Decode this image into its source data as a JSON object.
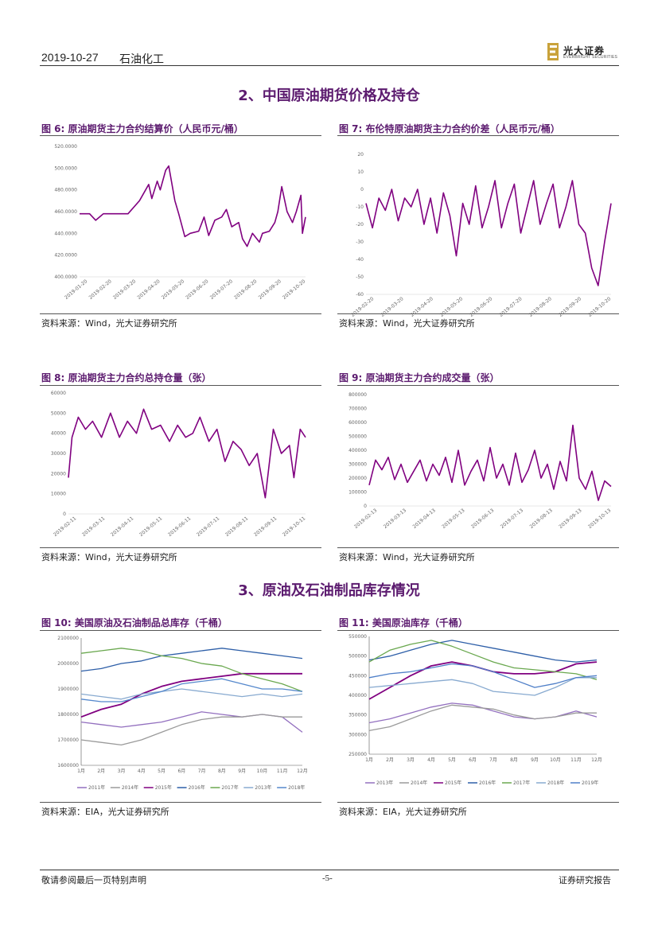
{
  "header": {
    "date": "2019-10-27",
    "sector": "石油化工",
    "logo_cn": "光大证券",
    "logo_en": "EVERBRIGHT SECURITIES"
  },
  "sections": [
    {
      "title": "2、中国原油期货价格及持仓"
    },
    {
      "title": "3、原油及石油制品库存情况"
    }
  ],
  "figures": [
    {
      "title": "图 6:   原油期货主力合约结算价（人民币元/桶）",
      "source": "资料来源：Wind，光大证券研究所"
    },
    {
      "title": "图 7:  布伦特原油期货主力合约价差（人民币元/桶）",
      "source": "资料来源：Wind，光大证券研究所"
    },
    {
      "title": "图 8:  原油期货主力合约总持仓量（张）",
      "source": "资料来源：Wind，光大证券研究所"
    },
    {
      "title": "图 9:  原油期货主力合约成交量（张）",
      "source": "资料来源：Wind，光大证券研究所"
    },
    {
      "title": "图 10:  美国原油及石油制品总库存（千桶）",
      "source": "资料来源：EIA，光大证券研究所"
    },
    {
      "title": "图 11:  美国原油库存（千桶）",
      "source": "资料来源：EIA，光大证券研究所"
    }
  ],
  "footer": {
    "disclaimer": "敬请参阅最后一页特别声明",
    "page": "-5-",
    "report_type": "证券研究报告"
  },
  "colors": {
    "brand_purple": "#5c1b6f",
    "series_purple": "#800080"
  },
  "chart_data": [
    {
      "id": "fig6",
      "type": "line",
      "ylim": [
        400,
        520
      ],
      "ytick_labels": [
        "400.0000",
        "420.0000",
        "440.0000",
        "460.0000",
        "480.0000",
        "500.0000",
        "520.0000"
      ],
      "xtick_labels": [
        "2019-01-20",
        "2019-02-20",
        "2019-03-20",
        "2019-04-20",
        "2019-05-20",
        "2019-06-20",
        "2019-07-20",
        "2019-08-20",
        "2019-09-20",
        "2019-10-20"
      ],
      "x": [
        "2019-01-01",
        "2019-01-14",
        "2019-01-22",
        "2019-02-01",
        "2019-02-20",
        "2019-03-05",
        "2019-03-20",
        "2019-04-01",
        "2019-04-05",
        "2019-04-12",
        "2019-04-16",
        "2019-04-23",
        "2019-04-27",
        "2019-05-05",
        "2019-05-10",
        "2019-05-18",
        "2019-05-25",
        "2019-06-05",
        "2019-06-12",
        "2019-06-18",
        "2019-06-26",
        "2019-07-05",
        "2019-07-11",
        "2019-07-18",
        "2019-07-27",
        "2019-08-01",
        "2019-08-07",
        "2019-08-14",
        "2019-08-23",
        "2019-08-27",
        "2019-09-05",
        "2019-09-12",
        "2019-09-16",
        "2019-09-21",
        "2019-09-28",
        "2019-10-05",
        "2019-10-10",
        "2019-10-16",
        "2019-10-18",
        "2019-10-22"
      ],
      "series": [
        {
          "values": [
            458,
            458,
            452,
            458,
            458,
            458,
            470,
            485,
            472,
            488,
            480,
            498,
            502,
            470,
            458,
            437,
            440,
            442,
            455,
            438,
            452,
            455,
            462,
            446,
            450,
            435,
            428,
            440,
            432,
            440,
            442,
            450,
            460,
            483,
            460,
            450,
            460,
            475,
            440,
            455
          ]
        }
      ],
      "color": "#800080"
    },
    {
      "id": "fig7",
      "type": "line",
      "ylim": [
        -60,
        20
      ],
      "ytick_labels": [
        "-60",
        "-50",
        "-40",
        "-30",
        "-20",
        "-10",
        "0",
        "10",
        "20"
      ],
      "xtick_labels": [
        "2019-02-20",
        "2019-03-20",
        "2019-04-20",
        "2019-05-20",
        "2019-06-20",
        "2019-07-20",
        "2019-08-20",
        "2019-09-20",
        "2019-10-20"
      ],
      "x": [
        "2019-02-01",
        "2019-02-08",
        "2019-02-15",
        "2019-02-22",
        "2019-03-01",
        "2019-03-08",
        "2019-03-15",
        "2019-03-22",
        "2019-03-29",
        "2019-04-05",
        "2019-04-12",
        "2019-04-19",
        "2019-04-26",
        "2019-05-03",
        "2019-05-10",
        "2019-05-17",
        "2019-05-24",
        "2019-05-31",
        "2019-06-07",
        "2019-06-14",
        "2019-06-21",
        "2019-06-28",
        "2019-07-05",
        "2019-07-12",
        "2019-07-19",
        "2019-07-26",
        "2019-08-02",
        "2019-08-09",
        "2019-08-16",
        "2019-08-23",
        "2019-08-30",
        "2019-09-06",
        "2019-09-13",
        "2019-09-20",
        "2019-09-27",
        "2019-10-04",
        "2019-10-11",
        "2019-10-18",
        "2019-10-25"
      ],
      "series": [
        {
          "values": [
            -8,
            -22,
            -5,
            -12,
            0,
            -18,
            -5,
            -10,
            0,
            -20,
            -5,
            -25,
            -2,
            -15,
            -38,
            -8,
            -20,
            2,
            -22,
            -10,
            5,
            -22,
            -8,
            3,
            -25,
            -10,
            5,
            -20,
            -8,
            3,
            -22,
            -10,
            5,
            -20,
            -25,
            -45,
            -55,
            -30,
            -8
          ]
        }
      ],
      "color": "#800080"
    },
    {
      "id": "fig8",
      "type": "line",
      "ylim": [
        0,
        60000
      ],
      "ytick_labels": [
        "0",
        "10000",
        "20000",
        "30000",
        "40000",
        "50000",
        "60000"
      ],
      "xtick_labels": [
        "2019-02-11",
        "2019-03-11",
        "2019-04-11",
        "2019-05-11",
        "2019-06-11",
        "2019-07-11",
        "2019-08-11",
        "2019-09-11",
        "2019-10-11"
      ],
      "x": [
        "2019-02-01",
        "2019-02-05",
        "2019-02-12",
        "2019-02-20",
        "2019-02-28",
        "2019-03-10",
        "2019-03-20",
        "2019-03-30",
        "2019-04-08",
        "2019-04-18",
        "2019-04-26",
        "2019-05-05",
        "2019-05-15",
        "2019-05-25",
        "2019-06-03",
        "2019-06-12",
        "2019-06-20",
        "2019-06-28",
        "2019-07-08",
        "2019-07-17",
        "2019-07-26",
        "2019-08-04",
        "2019-08-13",
        "2019-08-22",
        "2019-08-31",
        "2019-09-09",
        "2019-09-18",
        "2019-09-27",
        "2019-10-06",
        "2019-10-11",
        "2019-10-18",
        "2019-10-24"
      ],
      "series": [
        {
          "values": [
            18000,
            38000,
            48000,
            42000,
            46000,
            38000,
            50000,
            38000,
            46000,
            40000,
            52000,
            42000,
            44000,
            36000,
            44000,
            38000,
            40000,
            48000,
            36000,
            42000,
            26000,
            36000,
            32000,
            24000,
            30000,
            8000,
            42000,
            30000,
            34000,
            18000,
            42000,
            38000
          ]
        }
      ],
      "color": "#800080"
    },
    {
      "id": "fig9",
      "type": "line",
      "ylim": [
        0,
        800000
      ],
      "ytick_labels": [
        "0",
        "100000",
        "200000",
        "300000",
        "400000",
        "500000",
        "600000",
        "700000",
        "800000"
      ],
      "xtick_labels": [
        "2019-02-13",
        "2019-03-13",
        "2019-04-13",
        "2019-05-13",
        "2019-06-13",
        "2019-07-13",
        "2019-08-13",
        "2019-09-13",
        "2019-10-13"
      ],
      "x": [
        "2019-02-01",
        "2019-02-08",
        "2019-02-15",
        "2019-02-22",
        "2019-03-01",
        "2019-03-08",
        "2019-03-15",
        "2019-03-22",
        "2019-03-29",
        "2019-04-05",
        "2019-04-12",
        "2019-04-19",
        "2019-04-26",
        "2019-05-03",
        "2019-05-10",
        "2019-05-17",
        "2019-05-24",
        "2019-05-31",
        "2019-06-07",
        "2019-06-14",
        "2019-06-21",
        "2019-06-28",
        "2019-07-05",
        "2019-07-12",
        "2019-07-19",
        "2019-07-26",
        "2019-08-02",
        "2019-08-09",
        "2019-08-16",
        "2019-08-23",
        "2019-08-30",
        "2019-09-06",
        "2019-09-13",
        "2019-09-20",
        "2019-09-27",
        "2019-10-04",
        "2019-10-11",
        "2019-10-18",
        "2019-10-25"
      ],
      "series": [
        {
          "values": [
            150000,
            330000,
            260000,
            350000,
            190000,
            300000,
            170000,
            250000,
            330000,
            180000,
            300000,
            220000,
            350000,
            170000,
            400000,
            150000,
            250000,
            330000,
            180000,
            420000,
            200000,
            300000,
            150000,
            380000,
            170000,
            260000,
            400000,
            200000,
            300000,
            120000,
            320000,
            180000,
            580000,
            200000,
            120000,
            250000,
            40000,
            180000,
            140000
          ]
        }
      ],
      "color": "#800080"
    },
    {
      "id": "fig10",
      "type": "line",
      "ylim": [
        1600000,
        2100000
      ],
      "ytick_labels": [
        "1600000",
        "1700000",
        "1800000",
        "1900000",
        "2000000",
        "2100000"
      ],
      "categories": [
        "1月",
        "2月",
        "3月",
        "4月",
        "5月",
        "6月",
        "7月",
        "8月",
        "9月",
        "10月",
        "11月",
        "12月"
      ],
      "series": [
        {
          "name": "2011年",
          "color": "#9370bf",
          "values": [
            1770000,
            1760000,
            1750000,
            1760000,
            1770000,
            1790000,
            1810000,
            1800000,
            1790000,
            1800000,
            1790000,
            1730000
          ]
        },
        {
          "name": "2014年",
          "color": "#9a9a9a",
          "values": [
            1700000,
            1690000,
            1680000,
            1700000,
            1730000,
            1760000,
            1780000,
            1790000,
            1790000,
            1800000,
            1790000,
            1790000
          ]
        },
        {
          "name": "2015年",
          "color": "#800080",
          "values": [
            1790000,
            1820000,
            1840000,
            1880000,
            1910000,
            1930000,
            1940000,
            1950000,
            1960000,
            1960000,
            1960000,
            1960000
          ]
        },
        {
          "name": "2016年",
          "color": "#2e5fa8",
          "values": [
            1970000,
            1980000,
            2000000,
            2010000,
            2030000,
            2040000,
            2050000,
            2060000,
            2050000,
            2040000,
            2030000,
            2020000
          ]
        },
        {
          "name": "2017年",
          "color": "#6aa84f",
          "values": [
            2040000,
            2050000,
            2060000,
            2050000,
            2030000,
            2020000,
            2000000,
            1990000,
            1960000,
            1940000,
            1920000,
            1890000
          ]
        },
        {
          "name": "2013年",
          "color": "#88aad0",
          "values": [
            1880000,
            1870000,
            1860000,
            1880000,
            1890000,
            1900000,
            1890000,
            1880000,
            1870000,
            1880000,
            1870000,
            1880000
          ]
        },
        {
          "name": "2018年",
          "color": "#5588cc",
          "values": [
            1860000,
            1850000,
            1850000,
            1870000,
            1890000,
            1920000,
            1930000,
            1940000,
            1920000,
            1900000,
            1900000,
            1890000
          ]
        }
      ]
    },
    {
      "id": "fig11",
      "type": "line",
      "ytick_labels": [
        "250000",
        "300000",
        "350000",
        "400000",
        "450000",
        "500000",
        "550000"
      ],
      "ylim": [
        250000,
        550000
      ],
      "categories": [
        "1月",
        "2月",
        "3月",
        "4月",
        "5月",
        "6月",
        "7月",
        "8月",
        "9月",
        "10月",
        "11月",
        "12月"
      ],
      "series": [
        {
          "name": "2013年",
          "color": "#9370bf",
          "values": [
            330000,
            340000,
            355000,
            370000,
            380000,
            375000,
            360000,
            345000,
            340000,
            345000,
            360000,
            345000
          ]
        },
        {
          "name": "2014年",
          "color": "#9a9a9a",
          "values": [
            310000,
            320000,
            340000,
            360000,
            375000,
            370000,
            365000,
            350000,
            340000,
            345000,
            355000,
            355000
          ]
        },
        {
          "name": "2015年",
          "color": "#800080",
          "values": [
            390000,
            420000,
            450000,
            475000,
            485000,
            475000,
            460000,
            455000,
            455000,
            460000,
            480000,
            485000
          ]
        },
        {
          "name": "2016年",
          "color": "#2e5fa8",
          "values": [
            490000,
            500000,
            515000,
            530000,
            540000,
            530000,
            520000,
            510000,
            500000,
            490000,
            485000,
            490000
          ]
        },
        {
          "name": "2017年",
          "color": "#6aa84f",
          "values": [
            485000,
            515000,
            530000,
            540000,
            525000,
            505000,
            485000,
            470000,
            465000,
            460000,
            455000,
            440000
          ]
        },
        {
          "name": "2018年",
          "color": "#88aad0",
          "values": [
            420000,
            425000,
            430000,
            435000,
            440000,
            430000,
            410000,
            405000,
            400000,
            420000,
            445000,
            445000
          ]
        },
        {
          "name": "2019年",
          "color": "#4f7fc8",
          "values": [
            445000,
            455000,
            460000,
            470000,
            480000,
            475000,
            460000,
            440000,
            420000,
            430000,
            445000,
            450000
          ]
        }
      ]
    }
  ]
}
